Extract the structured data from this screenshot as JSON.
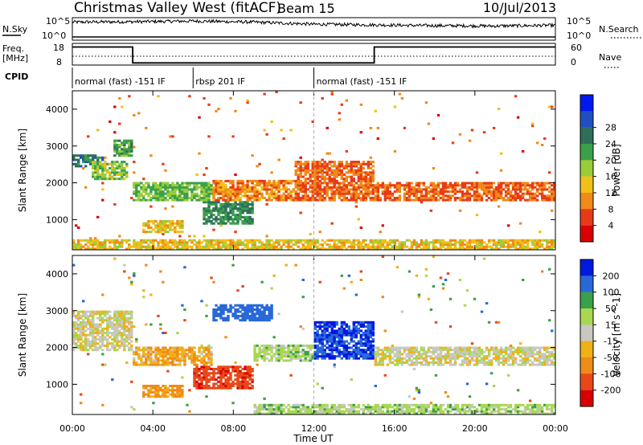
{
  "header": {
    "title": "Christmas Valley West (fitACF)",
    "beam": "Beam 15",
    "date": "10/Jul/2013"
  },
  "nsky_panel": {
    "left_label": "N.Sky",
    "left_ticks": [
      "10^5",
      "10^0"
    ],
    "right_label": "N.Search",
    "right_ticks": [
      "10^5",
      "10^0"
    ]
  },
  "freq_panel": {
    "left_label_1": "Freq.",
    "left_label_2": "[MHz]",
    "left_ticks": [
      "18",
      "8"
    ],
    "right_label": "Nave",
    "right_ticks": [
      "60",
      "0"
    ]
  },
  "cpid_panel": {
    "label": "CPID",
    "segments": [
      {
        "text": "normal (fast) -151 IF",
        "start": 0.0,
        "end": 6.0
      },
      {
        "text": "rbsp 201 IF",
        "start": 6.0,
        "end": 12.0
      },
      {
        "text": "normal (fast) -151 IF",
        "start": 12.0,
        "end": 24.0
      }
    ]
  },
  "chart_data": [
    {
      "type": "line",
      "title": "N.Sky / N.Search",
      "series": [
        {
          "name": "N.Sky",
          "x": [
            0,
            3,
            6,
            9,
            12,
            15,
            18,
            21,
            24
          ],
          "values": [
            4.2,
            4.3,
            4.5,
            4.2,
            3.6,
            3.4,
            3.2,
            3.1,
            3.3
          ]
        },
        {
          "name": "N.Search",
          "x": [
            0,
            24
          ],
          "values": [
            0.1,
            0.1
          ]
        }
      ]
    },
    {
      "type": "line",
      "title": "Freq. [MHz] / Nave",
      "series": [
        {
          "name": "Freq.",
          "x": [
            0,
            3.0,
            3.0,
            15.0,
            15.0,
            24
          ],
          "values": [
            16.5,
            16.5,
            9.2,
            9.2,
            16.5,
            16.5
          ]
        },
        {
          "name": "Nave",
          "x": [
            0,
            24
          ],
          "values": [
            13,
            13
          ]
        }
      ]
    },
    {
      "type": "heatmap",
      "title": "Power",
      "xlabel": "Time UT",
      "ylabel": "Slant Range [km]",
      "xlim": [
        0,
        24
      ],
      "ylim": [
        180,
        4500
      ],
      "x_ticks": [
        "00:00",
        "04:00",
        "08:00",
        "12:00",
        "16:00",
        "20:00",
        "00:00"
      ],
      "y_ticks": [
        "1000",
        "2000",
        "3000",
        "4000"
      ],
      "colorbar": {
        "label": "Power [dB]",
        "ticks": [
          "4",
          "8",
          "12",
          "16",
          "20",
          "24",
          "28"
        ],
        "colors": [
          "#0018f0",
          "#2050c0",
          "#2e6e5a",
          "#3aa04a",
          "#9acc3a",
          "#f0c018",
          "#f08a18",
          "#e83a18",
          "#d80000"
        ]
      },
      "features": [
        {
          "x_start": 0.0,
          "x_end": 1.5,
          "range_start": 2400,
          "range_end": 2800,
          "level": 26
        },
        {
          "x_start": 1.0,
          "x_end": 2.8,
          "range_start": 2100,
          "range_end": 2600,
          "level": 18
        },
        {
          "x_start": 2.0,
          "x_end": 3.0,
          "range_start": 2700,
          "range_end": 3200,
          "level": 22
        },
        {
          "x_start": 3.0,
          "x_end": 7.0,
          "range_start": 1500,
          "range_end": 2000,
          "level": 20
        },
        {
          "x_start": 6.5,
          "x_end": 9.0,
          "range_start": 900,
          "range_end": 1500,
          "level": 24
        },
        {
          "x_start": 3.5,
          "x_end": 5.5,
          "range_start": 650,
          "range_end": 1000,
          "level": 14
        },
        {
          "x_start": 7.0,
          "x_end": 11.0,
          "range_start": 1500,
          "range_end": 2100,
          "level": 10
        },
        {
          "x_start": 11.0,
          "x_end": 15.0,
          "range_start": 1500,
          "range_end": 2600,
          "level": 8
        },
        {
          "x_start": 15.0,
          "x_end": 24.0,
          "range_start": 1500,
          "range_end": 2000,
          "level": 8
        },
        {
          "x_start": 0.0,
          "x_end": 24.0,
          "range_start": 200,
          "range_end": 450,
          "level": 14
        }
      ]
    },
    {
      "type": "heatmap",
      "title": "Velocity",
      "xlabel": "Time UT",
      "ylabel": "Slant Range [km]",
      "xlim": [
        0,
        24
      ],
      "ylim": [
        180,
        4500
      ],
      "x_ticks": [
        "00:00",
        "04:00",
        "08:00",
        "12:00",
        "16:00",
        "20:00",
        "00:00"
      ],
      "y_ticks": [
        "1000",
        "2000",
        "3000",
        "4000"
      ],
      "colorbar": {
        "label": "Velocity [m s^-1]",
        "ticks": [
          "200",
          "100",
          "50",
          "15",
          "-15",
          "-50",
          "-100",
          "-200"
        ],
        "colors": [
          "#0018e0",
          "#2868d8",
          "#3aa04a",
          "#a8d850",
          "#c8c8c0",
          "#f0b018",
          "#f08a18",
          "#e84818",
          "#d80000"
        ]
      },
      "features": [
        {
          "x_start": 0.0,
          "x_end": 3.0,
          "range_start": 1900,
          "range_end": 3000,
          "level": 0
        },
        {
          "x_start": 3.0,
          "x_end": 7.0,
          "range_start": 1500,
          "range_end": 2000,
          "level": -40
        },
        {
          "x_start": 6.0,
          "x_end": 9.0,
          "range_start": 900,
          "range_end": 1500,
          "level": -180
        },
        {
          "x_start": 7.0,
          "x_end": 10.0,
          "range_start": 2700,
          "range_end": 3200,
          "level": 150
        },
        {
          "x_start": 12.0,
          "x_end": 15.0,
          "range_start": 1700,
          "range_end": 2700,
          "level": 200
        },
        {
          "x_start": 9.0,
          "x_end": 12.0,
          "range_start": 1600,
          "range_end": 2100,
          "level": 30
        },
        {
          "x_start": 15.0,
          "x_end": 24.0,
          "range_start": 1500,
          "range_end": 2000,
          "level": 0
        },
        {
          "x_start": 3.5,
          "x_end": 5.5,
          "range_start": 650,
          "range_end": 1000,
          "level": -60
        },
        {
          "x_start": 9.0,
          "x_end": 24.0,
          "range_start": 200,
          "range_end": 450,
          "level": 30
        }
      ]
    }
  ]
}
